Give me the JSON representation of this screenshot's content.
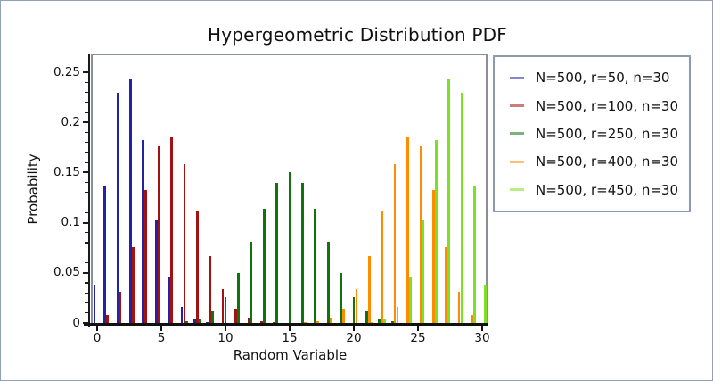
{
  "window": {
    "background": "#ffffff",
    "border_color": "#8fa0b8"
  },
  "chart_data": {
    "type": "bar",
    "title": "Hypergeometric Distribution PDF",
    "xlabel": "Random Variable",
    "ylabel": "Probability",
    "x": [
      0,
      1,
      2,
      3,
      4,
      5,
      6,
      7,
      8,
      9,
      10,
      11,
      12,
      13,
      14,
      15,
      16,
      17,
      18,
      19,
      20,
      21,
      22,
      23,
      24,
      25,
      26,
      27,
      28,
      29,
      30
    ],
    "xlim": [
      -0.5,
      30.5
    ],
    "ylim": [
      0,
      0.2685
    ],
    "grid": false,
    "legend_position": "outside-upper-right",
    "x_ticks": [
      {
        "value": 0,
        "label": "0"
      },
      {
        "value": 5,
        "label": "5"
      },
      {
        "value": 10,
        "label": "10"
      },
      {
        "value": 15,
        "label": "15"
      },
      {
        "value": 20,
        "label": "20"
      },
      {
        "value": 25,
        "label": "25"
      },
      {
        "value": 30,
        "label": "30"
      }
    ],
    "y_ticks": [
      {
        "value": 0,
        "label": "0"
      },
      {
        "value": 0.05,
        "label": "0.05"
      },
      {
        "value": 0.1,
        "label": "0.1"
      },
      {
        "value": 0.15,
        "label": "0.15"
      },
      {
        "value": 0.2,
        "label": "0.2"
      },
      {
        "value": 0.25,
        "label": "0.25"
      }
    ],
    "y_minor_tick_step": 0.01,
    "series": [
      {
        "name": "N=500, r=50, n=30",
        "color": "#2222a6",
        "values": [
          0.0383,
          0.1365,
          0.2298,
          0.2434,
          0.1821,
          0.1025,
          0.0451,
          0.0159,
          0.0046,
          0.0011,
          0.0002,
          0,
          0,
          0,
          0,
          0,
          0,
          0,
          0,
          0,
          0,
          0,
          0,
          0,
          0,
          0,
          0,
          0,
          0,
          0,
          0
        ]
      },
      {
        "name": "N=500, r=100, n=30",
        "color": "#a31111",
        "values": [
          0.001,
          0.008,
          0.0309,
          0.0757,
          0.1326,
          0.1765,
          0.1858,
          0.1588,
          0.1123,
          0.0667,
          0.0335,
          0.0144,
          0.0053,
          0.0017,
          0.0005,
          0.0001,
          0,
          0,
          0,
          0,
          0,
          0,
          0,
          0,
          0,
          0,
          0,
          0,
          0,
          0,
          0
        ]
      },
      {
        "name": "N=500, r=250, n=30",
        "color": "#0e750e",
        "values": [
          0,
          0,
          0,
          0,
          0,
          0,
          0.0004,
          0.0015,
          0.0046,
          0.0119,
          0.0262,
          0.0494,
          0.0806,
          0.1139,
          0.1401,
          0.1501,
          0.1401,
          0.1139,
          0.0806,
          0.0494,
          0.0262,
          0.0119,
          0.0046,
          0.0015,
          0.0004,
          0,
          0,
          0,
          0,
          0,
          0
        ]
      },
      {
        "name": "N=500, r=400, n=30",
        "color": "#ff8c00",
        "values": [
          0,
          0,
          0,
          0,
          0,
          0,
          0,
          0,
          0,
          0,
          0,
          0,
          0,
          0,
          0,
          0.0001,
          0.0005,
          0.0017,
          0.0053,
          0.0144,
          0.0335,
          0.0667,
          0.1123,
          0.1588,
          0.1858,
          0.1765,
          0.1326,
          0.0757,
          0.0309,
          0.008,
          0.001
        ]
      },
      {
        "name": "N=500, r=450, n=30",
        "color": "#7de020",
        "values": [
          0,
          0,
          0,
          0,
          0,
          0,
          0,
          0,
          0,
          0,
          0,
          0,
          0,
          0,
          0,
          0,
          0,
          0,
          0,
          0,
          0.0002,
          0.0011,
          0.0046,
          0.0159,
          0.0451,
          0.1025,
          0.1821,
          0.2434,
          0.2298,
          0.1365,
          0.0383
        ]
      }
    ]
  }
}
